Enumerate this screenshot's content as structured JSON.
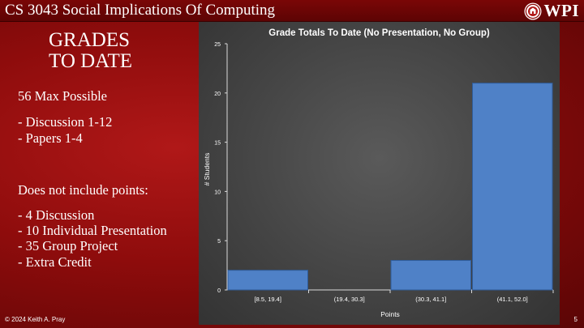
{
  "header": {
    "course_title": "CS 3043 Social Implications Of Computing",
    "logo_text": "WPI"
  },
  "left_panel": {
    "heading_line1": "GRADES",
    "heading_line2": "TO DATE",
    "max_possible": "56 Max Possible",
    "included": [
      "- Discussion 1-12",
      "- Papers 1-4"
    ],
    "excludes_heading": "Does not include points:",
    "excluded": [
      "- 4 Discussion",
      "- 10 Individual Presentation",
      "- 35 Group Project",
      "- Extra Credit"
    ]
  },
  "footer": {
    "copyright": "© 2024 Keith A. Pray",
    "page_number": "5"
  },
  "colors": {
    "bar_fill": "#4f81c7",
    "bar_stroke": "#2f5c9a",
    "chart_bg": "#4a4a4a",
    "slide_red": "#a31313"
  },
  "chart_data": {
    "type": "bar",
    "title": "Grade Totals To Date (No Presentation, No Group)",
    "xlabel": "Points",
    "ylabel": "# Students",
    "categories": [
      "[8.5, 19.4]",
      "(19.4, 30.3]",
      "(30.3, 41.1]",
      "(41.1, 52.0]"
    ],
    "values": [
      2,
      0,
      3,
      21
    ],
    "ylim": [
      0,
      25
    ],
    "yticks": [
      0,
      5,
      10,
      15,
      20,
      25
    ],
    "grid": false,
    "legend": "none"
  }
}
